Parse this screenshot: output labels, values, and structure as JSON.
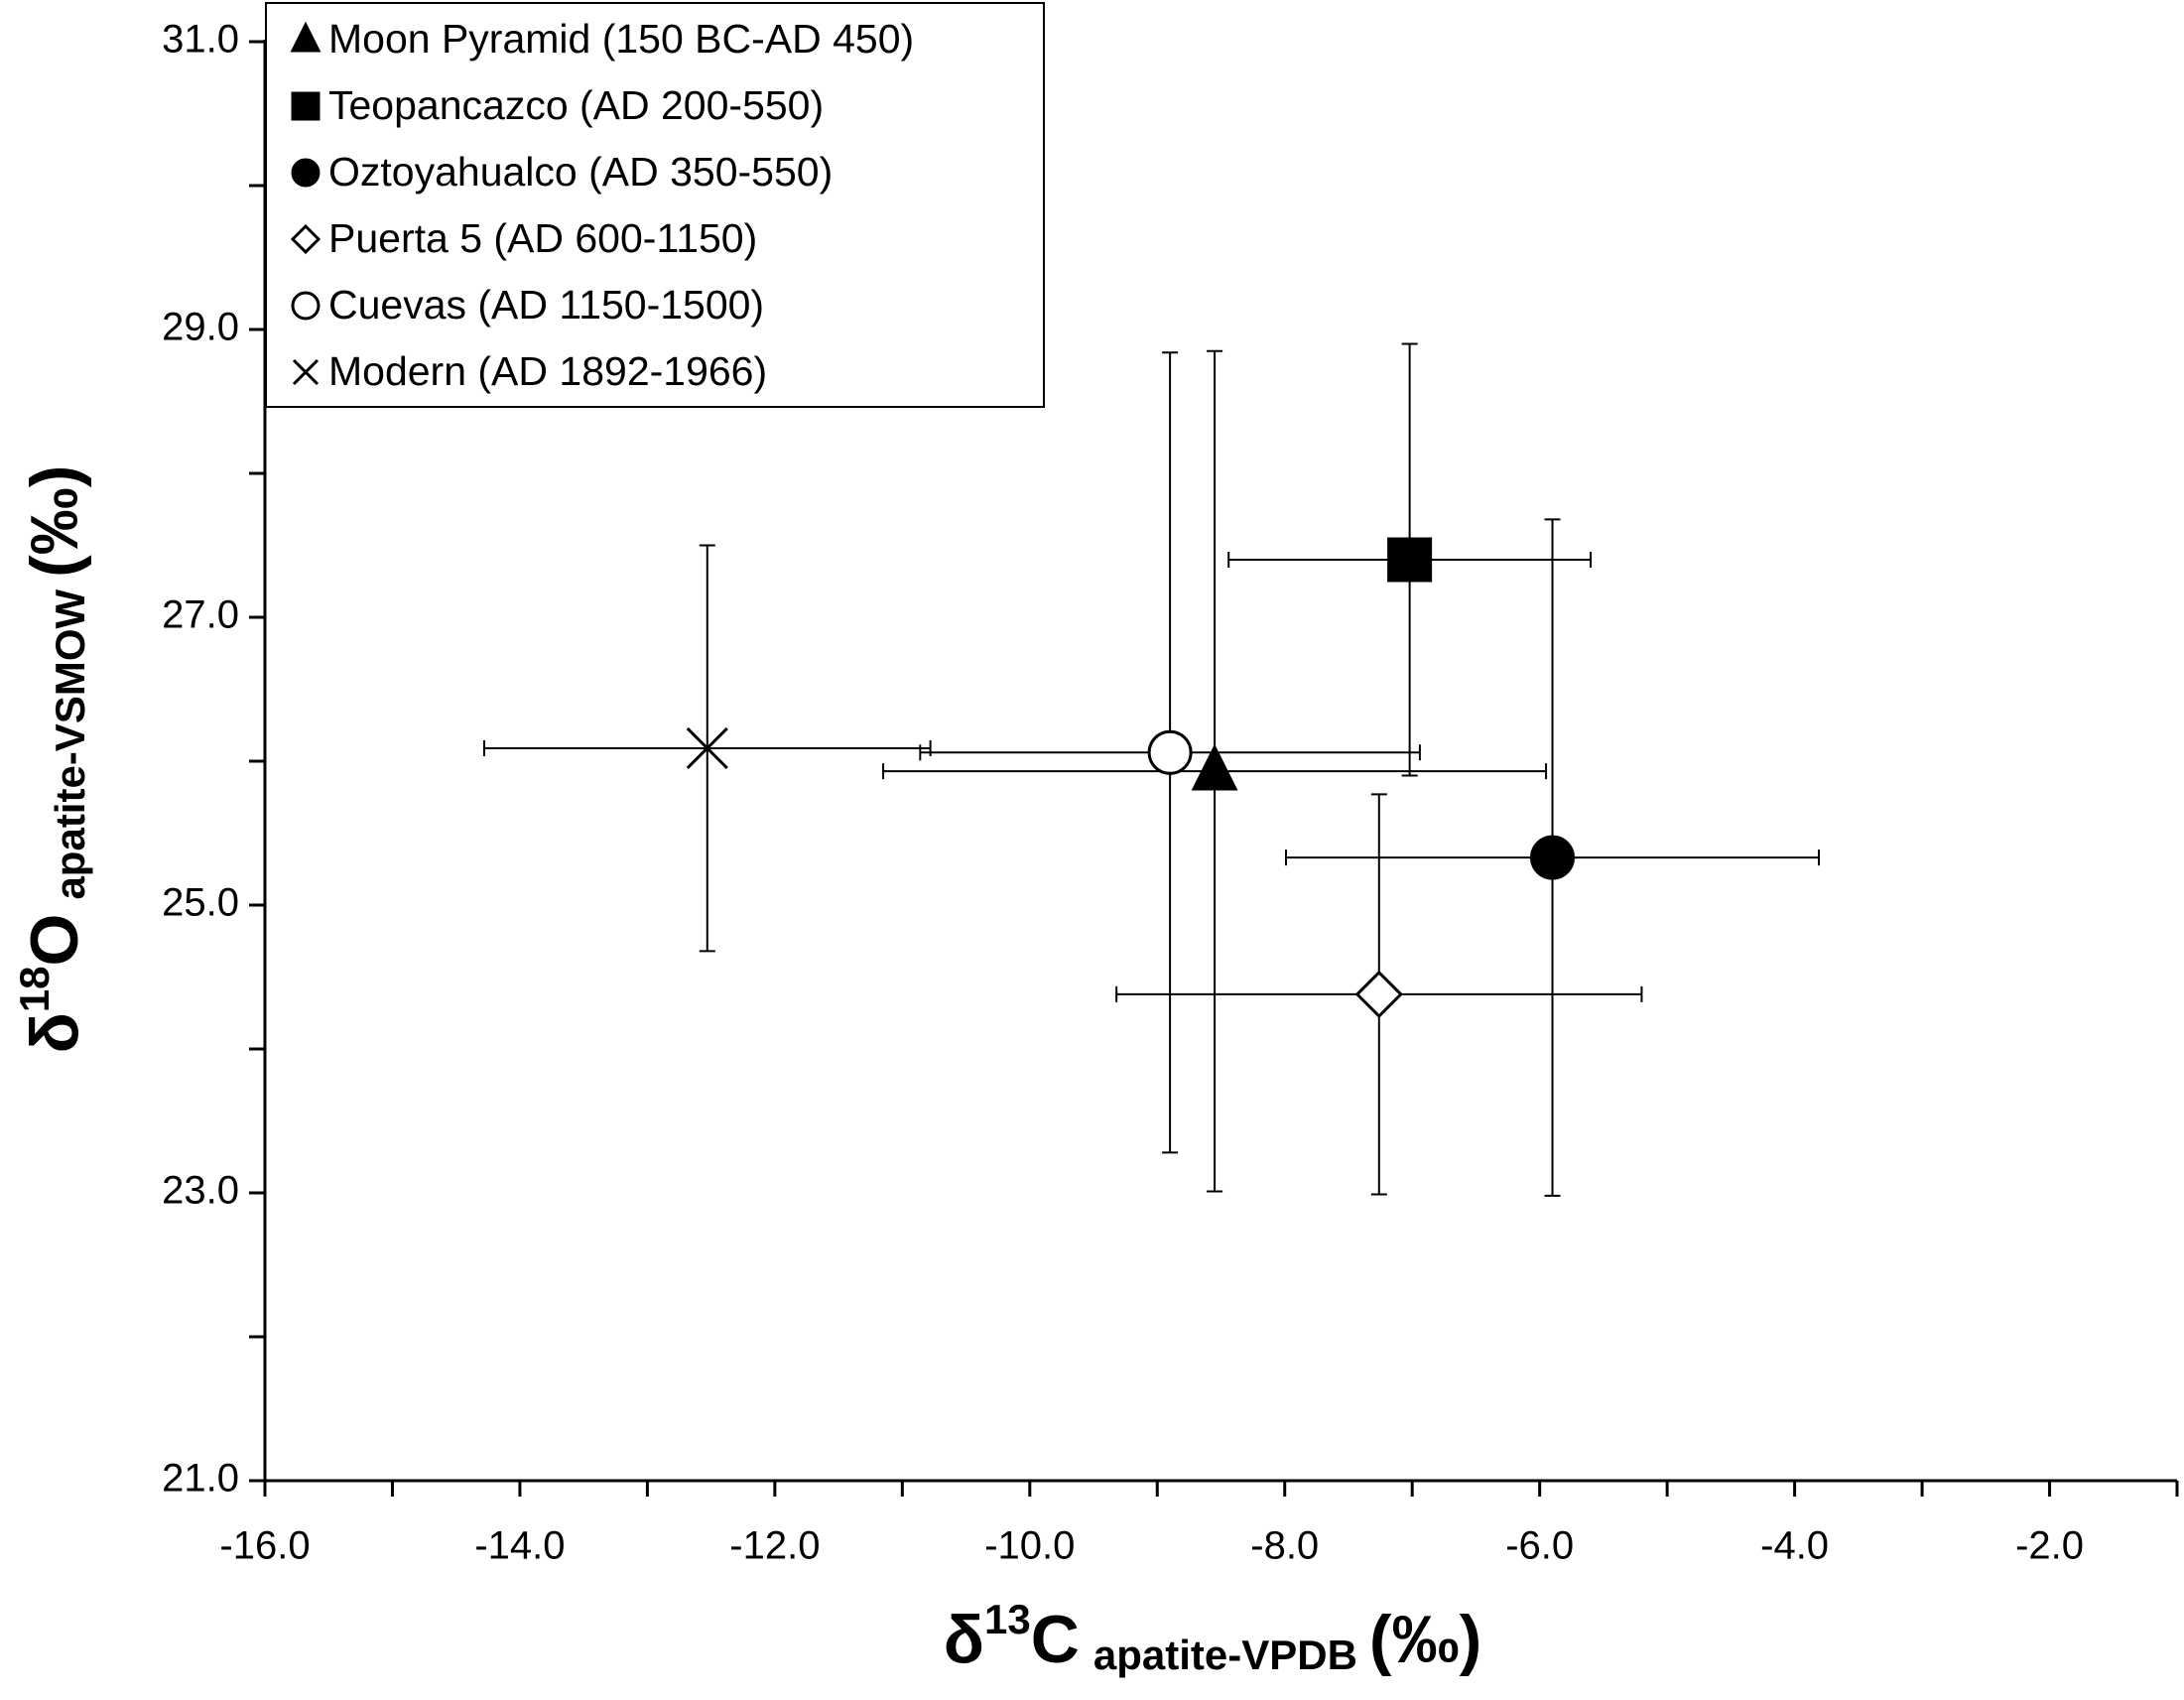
{
  "chart_data": {
    "type": "scatter",
    "x_label": {
      "main": "δ",
      "sup": "13",
      "base": "C",
      "sub": "apatite-VPDB",
      "unit": "(‰)"
    },
    "y_label": {
      "main": "δ",
      "sup": "18",
      "base": "O",
      "sub": "apatite-VSMOW",
      "unit": "(‰)"
    },
    "xlim": [
      -16,
      -1
    ],
    "ylim": [
      21,
      31
    ],
    "xticks": [
      {
        "value": -16,
        "label": "-16.0"
      },
      {
        "value": -14,
        "label": "-14.0"
      },
      {
        "value": -12,
        "label": "-12.0"
      },
      {
        "value": -10,
        "label": "-10.0"
      },
      {
        "value": -8,
        "label": "-8.0"
      },
      {
        "value": -6,
        "label": "-6.0"
      },
      {
        "value": -4,
        "label": "-4.0"
      },
      {
        "value": -2,
        "label": "-2.0"
      }
    ],
    "xminorticks": [
      -15,
      -13,
      -11,
      -9,
      -7,
      -5,
      -3,
      -1
    ],
    "yticks": [
      {
        "value": 21,
        "label": "21.0"
      },
      {
        "value": 23,
        "label": "23.0"
      },
      {
        "value": 25,
        "label": "25.0"
      },
      {
        "value": 27,
        "label": "27.0"
      },
      {
        "value": 29,
        "label": "29.0"
      },
      {
        "value": 31,
        "label": "31.0"
      }
    ],
    "yminorticks": [
      22,
      24,
      26,
      28,
      30
    ],
    "legend": "top-left",
    "series": [
      {
        "name": "Moon Pyramid (150 BC-AD 450)",
        "marker": "triangle",
        "color": "#000000",
        "fill": "#000000",
        "x": -8.55,
        "y": 25.93,
        "xerr": 2.6,
        "yerr": 2.92
      },
      {
        "name": "Teopancazco (AD 200-550)",
        "marker": "square",
        "color": "#000000",
        "fill": "#000000",
        "x": -7.02,
        "y": 27.4,
        "xerr": 1.42,
        "yerr": 1.5
      },
      {
        "name": "Oztoyahualco (AD 350-550)",
        "marker": "circle",
        "color": "#000000",
        "fill": "#000000",
        "x": -5.9,
        "y": 25.33,
        "xerr": 2.09,
        "yerr": 2.35
      },
      {
        "name": "Puerta 5 (AD 600-1150)",
        "marker": "diamond",
        "color": "#000000",
        "fill": "#ffffff",
        "x": -7.26,
        "y": 24.38,
        "xerr": 2.06,
        "yerr": 1.39
      },
      {
        "name": "Cuevas (AD 1150-1500)",
        "marker": "circle",
        "color": "#000000",
        "fill": "#ffffff",
        "x": -8.9,
        "y": 26.06,
        "xerr": 1.96,
        "yerr": 2.78
      },
      {
        "name": "Modern (AD 1892-1966)",
        "marker": "cross",
        "color": "#000000",
        "fill": "none",
        "x": -12.53,
        "y": 26.09,
        "xerr": 1.75,
        "yerr": 1.41
      }
    ]
  }
}
